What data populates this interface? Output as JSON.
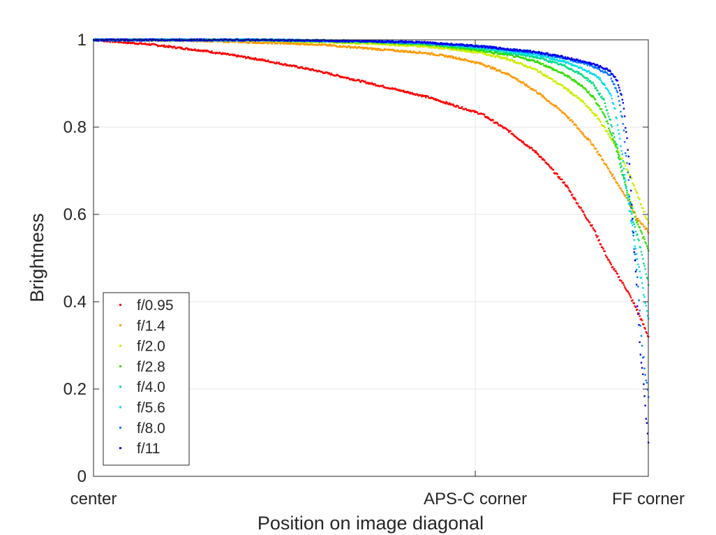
{
  "chart_data": {
    "type": "scatter",
    "title": "",
    "xlabel": "Position on image diagonal",
    "ylabel": "Brightness",
    "xlim": [
      0,
      1
    ],
    "ylim": [
      0,
      1
    ],
    "x_ticks": [
      {
        "value": 0,
        "label": "center"
      },
      {
        "value": 0.6881,
        "label": "APS-C corner"
      },
      {
        "value": 1.0,
        "label": "FF corner"
      }
    ],
    "y_ticks": [
      {
        "value": 0,
        "label": "0"
      },
      {
        "value": 0.2,
        "label": "0.2"
      },
      {
        "value": 0.4,
        "label": "0.4"
      },
      {
        "value": 0.6,
        "label": "0.6"
      },
      {
        "value": 0.8,
        "label": "0.8"
      },
      {
        "value": 1,
        "label": "1"
      }
    ],
    "grid": true,
    "legend_position": "bottom-left",
    "series": [
      {
        "name": "f/0.95",
        "color": "#ff0000",
        "points": [
          [
            0,
            1.0
          ],
          [
            0.1,
            0.99
          ],
          [
            0.2,
            0.975
          ],
          [
            0.3,
            0.955
          ],
          [
            0.4,
            0.93
          ],
          [
            0.5,
            0.9
          ],
          [
            0.6,
            0.87
          ],
          [
            0.7,
            0.83
          ],
          [
            0.75,
            0.79
          ],
          [
            0.8,
            0.74
          ],
          [
            0.85,
            0.67
          ],
          [
            0.9,
            0.57
          ],
          [
            0.93,
            0.49
          ],
          [
            0.96,
            0.43
          ],
          [
            0.98,
            0.38
          ],
          [
            1.0,
            0.32
          ]
        ]
      },
      {
        "name": "f/1.4",
        "color": "#ff9900",
        "points": [
          [
            0,
            1.0
          ],
          [
            0.2,
            0.998
          ],
          [
            0.4,
            0.99
          ],
          [
            0.5,
            0.98
          ],
          [
            0.6,
            0.97
          ],
          [
            0.65,
            0.96
          ],
          [
            0.7,
            0.945
          ],
          [
            0.75,
            0.92
          ],
          [
            0.8,
            0.88
          ],
          [
            0.85,
            0.83
          ],
          [
            0.9,
            0.76
          ],
          [
            0.93,
            0.7
          ],
          [
            0.96,
            0.64
          ],
          [
            0.98,
            0.59
          ],
          [
            1.0,
            0.56
          ]
        ]
      },
      {
        "name": "f/2.0",
        "color": "#ccee00",
        "points": [
          [
            0,
            1.0
          ],
          [
            0.3,
            0.999
          ],
          [
            0.5,
            0.992
          ],
          [
            0.6,
            0.985
          ],
          [
            0.7,
            0.97
          ],
          [
            0.75,
            0.955
          ],
          [
            0.8,
            0.93
          ],
          [
            0.85,
            0.89
          ],
          [
            0.88,
            0.86
          ],
          [
            0.91,
            0.82
          ],
          [
            0.94,
            0.76
          ],
          [
            0.97,
            0.68
          ],
          [
            1.0,
            0.58
          ]
        ]
      },
      {
        "name": "f/2.8",
        "color": "#33dd00",
        "points": [
          [
            0,
            1.0
          ],
          [
            0.3,
            1.0
          ],
          [
            0.5,
            0.995
          ],
          [
            0.6,
            0.99
          ],
          [
            0.7,
            0.975
          ],
          [
            0.75,
            0.965
          ],
          [
            0.8,
            0.95
          ],
          [
            0.85,
            0.92
          ],
          [
            0.88,
            0.895
          ],
          [
            0.9,
            0.87
          ],
          [
            0.92,
            0.83
          ],
          [
            0.94,
            0.76
          ],
          [
            0.96,
            0.66
          ],
          [
            0.98,
            0.58
          ],
          [
            1.0,
            0.52
          ]
        ]
      },
      {
        "name": "f/4.0",
        "color": "#00dd88",
        "points": [
          [
            0,
            1.0
          ],
          [
            0.3,
            1.0
          ],
          [
            0.5,
            0.996
          ],
          [
            0.6,
            0.992
          ],
          [
            0.7,
            0.98
          ],
          [
            0.8,
            0.96
          ],
          [
            0.85,
            0.94
          ],
          [
            0.88,
            0.92
          ],
          [
            0.9,
            0.9
          ],
          [
            0.92,
            0.86
          ],
          [
            0.93,
            0.82
          ],
          [
            0.95,
            0.72
          ],
          [
            0.97,
            0.6
          ],
          [
            0.99,
            0.5
          ],
          [
            1.0,
            0.44
          ]
        ]
      },
      {
        "name": "f/5.6",
        "color": "#00ddee",
        "points": [
          [
            0,
            1.0
          ],
          [
            0.3,
            1.0
          ],
          [
            0.5,
            0.997
          ],
          [
            0.6,
            0.993
          ],
          [
            0.7,
            0.983
          ],
          [
            0.8,
            0.965
          ],
          [
            0.85,
            0.95
          ],
          [
            0.88,
            0.935
          ],
          [
            0.91,
            0.915
          ],
          [
            0.93,
            0.88
          ],
          [
            0.94,
            0.84
          ],
          [
            0.95,
            0.76
          ],
          [
            0.96,
            0.66
          ],
          [
            0.98,
            0.5
          ],
          [
            1.0,
            0.36
          ]
        ]
      },
      {
        "name": "f/8.0",
        "color": "#0077ff",
        "points": [
          [
            0,
            1.0
          ],
          [
            0.3,
            1.0
          ],
          [
            0.5,
            0.997
          ],
          [
            0.6,
            0.993
          ],
          [
            0.7,
            0.985
          ],
          [
            0.8,
            0.97
          ],
          [
            0.85,
            0.958
          ],
          [
            0.9,
            0.94
          ],
          [
            0.93,
            0.92
          ],
          [
            0.945,
            0.88
          ],
          [
            0.955,
            0.8
          ],
          [
            0.965,
            0.66
          ],
          [
            0.98,
            0.45
          ],
          [
            0.99,
            0.28
          ],
          [
            1.0,
            0.18
          ]
        ]
      },
      {
        "name": "f/11",
        "color": "#0000ee",
        "points": [
          [
            0,
            1.0
          ],
          [
            0.3,
            1.0
          ],
          [
            0.5,
            0.997
          ],
          [
            0.6,
            0.994
          ],
          [
            0.7,
            0.985
          ],
          [
            0.8,
            0.972
          ],
          [
            0.85,
            0.96
          ],
          [
            0.9,
            0.945
          ],
          [
            0.93,
            0.93
          ],
          [
            0.945,
            0.905
          ],
          [
            0.955,
            0.85
          ],
          [
            0.965,
            0.72
          ],
          [
            0.975,
            0.5
          ],
          [
            0.985,
            0.3
          ],
          [
            0.995,
            0.15
          ],
          [
            1.0,
            0.08
          ]
        ]
      }
    ]
  }
}
